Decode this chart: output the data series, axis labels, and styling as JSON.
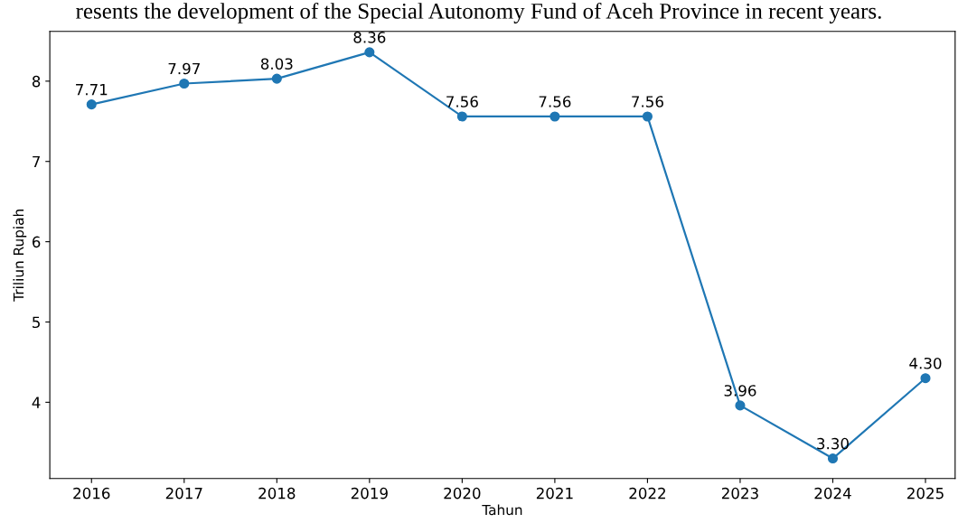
{
  "chart_data": {
    "type": "line",
    "title": "resents the development of the Special Autonomy Fund of Aceh Province in recent years.",
    "xlabel": "Tahun",
    "ylabel": "Triliun Rupiah",
    "x": [
      2016,
      2017,
      2018,
      2019,
      2020,
      2021,
      2022,
      2023,
      2024,
      2025
    ],
    "series": [
      {
        "color": "#1f77b4",
        "values": [
          7.71,
          7.97,
          8.03,
          8.36,
          7.56,
          7.56,
          7.56,
          3.96,
          3.3,
          4.3
        ],
        "value_labels": [
          "7.71",
          "7.97",
          "8.03",
          "8.36",
          "7.56",
          "7.56",
          "7.56",
          "3.96",
          "3.30",
          "4.30"
        ]
      }
    ],
    "xlim": [
      2015.55,
      2025.32
    ],
    "ylim": [
      3.05,
      8.62
    ],
    "xticks": [
      2016,
      2017,
      2018,
      2019,
      2020,
      2021,
      2022,
      2023,
      2024,
      2025
    ],
    "yticks": [
      4,
      5,
      6,
      7,
      8
    ],
    "marker": "circle",
    "line_style": "solid",
    "grid": false
  }
}
